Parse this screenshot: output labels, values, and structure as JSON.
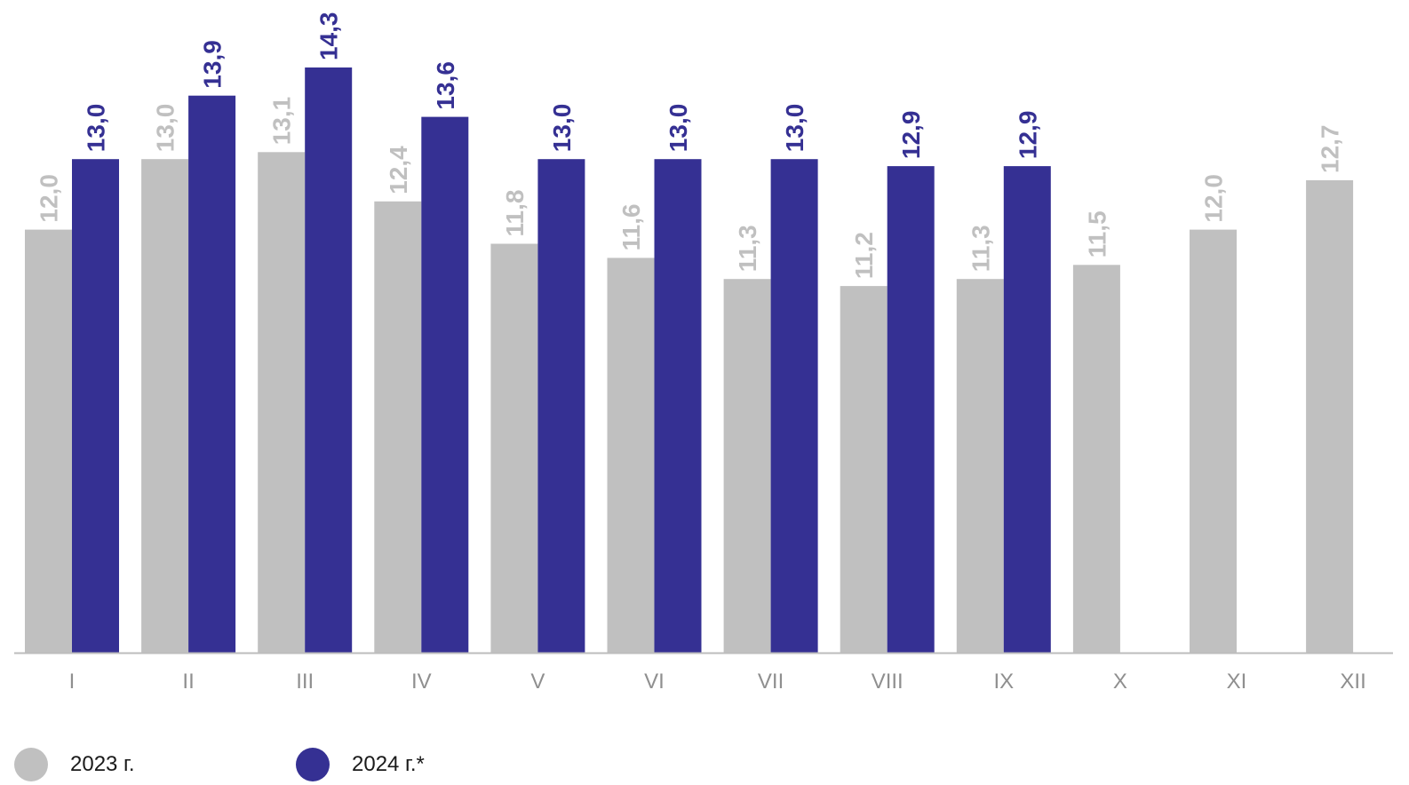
{
  "chart_data": {
    "type": "bar",
    "categories": [
      "I",
      "II",
      "III",
      "IV",
      "V",
      "VI",
      "VII",
      "VIII",
      "IX",
      "X",
      "XI",
      "XII"
    ],
    "series": [
      {
        "name": "2023 г.",
        "color": "#c0c0c0",
        "values": [
          12.0,
          13.0,
          13.1,
          12.4,
          11.8,
          11.6,
          11.3,
          11.2,
          11.3,
          11.5,
          12.0,
          12.7
        ],
        "labels": [
          "12,0",
          "13,0",
          "13,1",
          "12,4",
          "11,8",
          "11,6",
          "11,3",
          "11,2",
          "11,3",
          "11,5",
          "12,0",
          "12,7"
        ]
      },
      {
        "name": "2024 г.*",
        "color": "#353093",
        "values": [
          13.0,
          13.9,
          14.3,
          13.6,
          13.0,
          13.0,
          13.0,
          12.9,
          12.9,
          null,
          null,
          null
        ],
        "labels": [
          "13,0",
          "13,9",
          "14,3",
          "13,6",
          "13,0",
          "13,0",
          "13,0",
          "12,9",
          "12,9",
          null,
          null,
          null
        ]
      }
    ],
    "ylim": [
      6,
      14.3
    ],
    "grid": false,
    "legend_position": "bottom-left"
  },
  "legend": {
    "items": [
      {
        "label": "2023 г.",
        "color": "#c0c0c0"
      },
      {
        "label": "2024 г.*",
        "color": "#353093"
      }
    ]
  },
  "colors": {
    "axis": "#bdbdbd",
    "tick_label": "#8f8f8f"
  }
}
